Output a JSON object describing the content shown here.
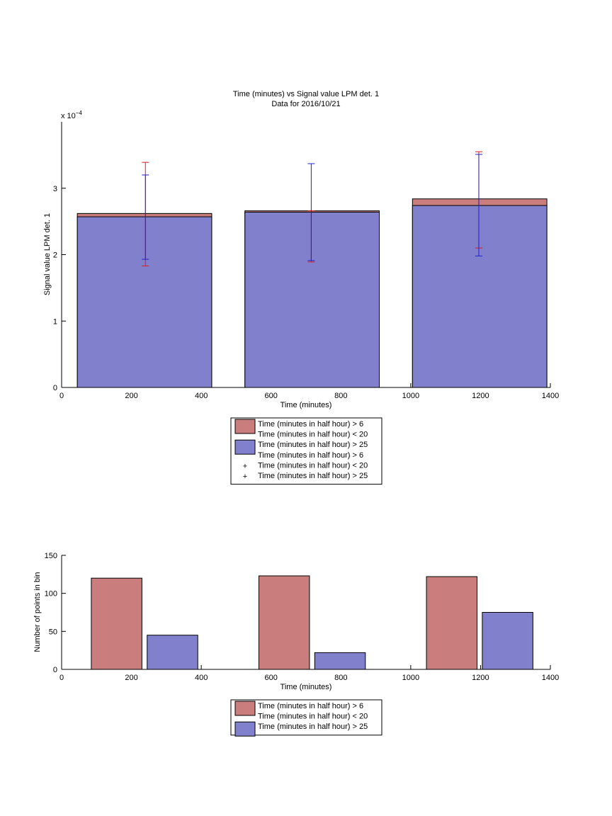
{
  "colors": {
    "red_series": "#c97d7d",
    "blue_series": "#8080cc",
    "red_errorbar": "#e41a1c",
    "blue_errorbar": "#1f1fd6",
    "axis": "#000000"
  },
  "chart_data": [
    {
      "type": "bar",
      "stacked": true,
      "title": "Time (minutes) vs Signal value LPM det. 1",
      "subtitle": "Data for 2016/10/21",
      "xlabel": "Time (minutes)",
      "ylabel": "Signal value LPM det. 1",
      "y_exponent_label": "x 10",
      "y_exponent_power": "−4",
      "xlim": [
        0,
        1400
      ],
      "ylim": [
        0,
        4
      ],
      "xticks": [
        "0",
        "200",
        "400",
        "600",
        "800",
        "1000",
        "1200",
        "1400"
      ],
      "yticks": [
        "0",
        "1",
        "2",
        "3"
      ],
      "bars": [
        {
          "x_start": 45,
          "x_end": 430,
          "blue_value": 2.57,
          "red_value": 2.62
        },
        {
          "x_start": 525,
          "x_end": 910,
          "blue_value": 2.64,
          "red_value": 2.66
        },
        {
          "x_start": 1005,
          "x_end": 1390,
          "blue_value": 2.74,
          "red_value": 2.84
        }
      ],
      "errorbars": {
        "red": [
          {
            "x": 240,
            "low": 1.83,
            "high": 3.39
          },
          {
            "x": 715,
            "low": 1.89,
            "high": 2.66
          },
          {
            "x": 1195,
            "low": 2.1,
            "high": 3.55
          }
        ],
        "blue": [
          {
            "x": 240,
            "low": 1.93,
            "high": 3.2
          },
          {
            "x": 715,
            "low": 1.91,
            "high": 3.37
          },
          {
            "x": 1195,
            "low": 1.98,
            "high": 3.51
          }
        ]
      },
      "legend": [
        {
          "kind": "patch",
          "color": "red",
          "label": "Time (minutes in half hour) > 6"
        },
        {
          "kind": "text",
          "label": "Time (minutes in half hour) < 20"
        },
        {
          "kind": "patch",
          "color": "blue",
          "label": "Time (minutes in half hour) > 25"
        },
        {
          "kind": "text",
          "label": "Time (minutes in half hour) > 6"
        },
        {
          "kind": "marker",
          "color": "red",
          "label": "Time (minutes in half hour) < 20"
        },
        {
          "kind": "marker",
          "color": "blue",
          "label": "Time (minutes in half hour) > 25"
        }
      ],
      "legend_position": "below"
    },
    {
      "type": "bar",
      "xlabel": "Time (minutes)",
      "ylabel": "Number of points in bin",
      "xlim": [
        0,
        1400
      ],
      "ylim": [
        0,
        150
      ],
      "xticks": [
        "0",
        "200",
        "400",
        "600",
        "800",
        "1000",
        "1200",
        "1400"
      ],
      "yticks": [
        "0",
        "50",
        "100",
        "150"
      ],
      "bars": [
        {
          "series": "red",
          "x_start": 85,
          "x_end": 230,
          "value": 120
        },
        {
          "series": "blue",
          "x_start": 245,
          "x_end": 390,
          "value": 45
        },
        {
          "series": "red",
          "x_start": 565,
          "x_end": 710,
          "value": 123
        },
        {
          "series": "blue",
          "x_start": 725,
          "x_end": 870,
          "value": 22
        },
        {
          "series": "red",
          "x_start": 1045,
          "x_end": 1190,
          "value": 122
        },
        {
          "series": "blue",
          "x_start": 1205,
          "x_end": 1350,
          "value": 75
        }
      ],
      "legend": [
        {
          "kind": "patch",
          "color": "red",
          "label": "Time (minutes in half hour) > 6"
        },
        {
          "kind": "text",
          "label": "Time (minutes in half hour) < 20"
        },
        {
          "kind": "patch",
          "color": "blue",
          "label": "Time (minutes in half hour) > 25"
        }
      ],
      "legend_position": "below"
    }
  ]
}
